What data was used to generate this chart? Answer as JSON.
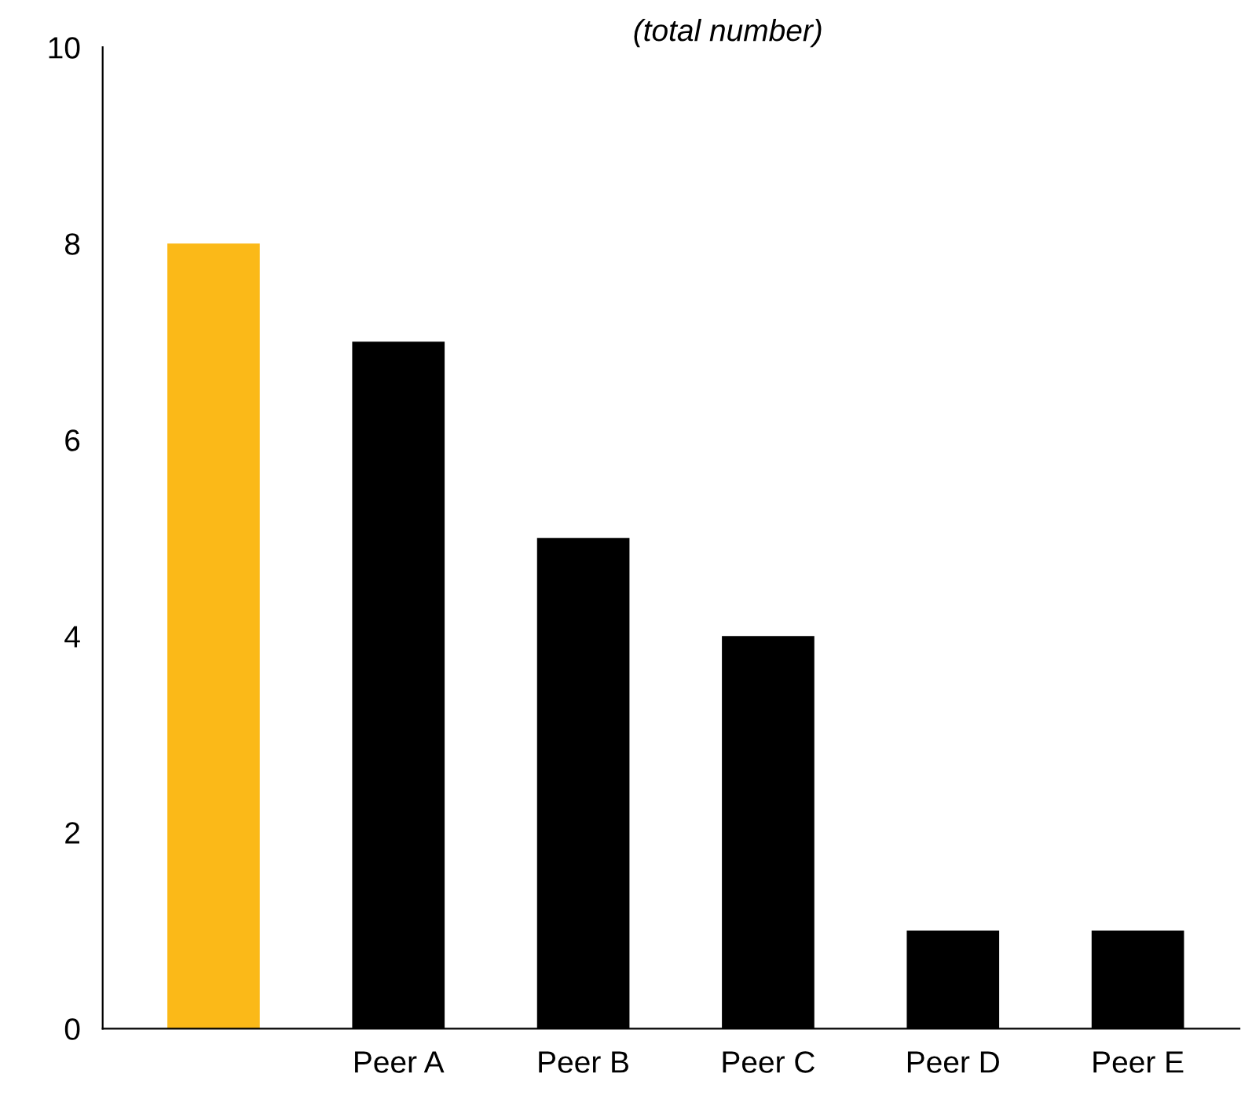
{
  "chart_data": {
    "type": "bar",
    "title": "(total number)",
    "categories": [
      null,
      "Peer A",
      "Peer B",
      "Peer C",
      "Peer D",
      "Peer E"
    ],
    "values": [
      8,
      7,
      5,
      4,
      1,
      1
    ],
    "colors": [
      "#fbb918",
      "#000000",
      "#000000",
      "#000000",
      "#000000",
      "#000000"
    ],
    "ylim": [
      0,
      10
    ],
    "yticks": [
      0,
      2,
      4,
      6,
      8,
      10
    ],
    "grid": false,
    "legend": false
  }
}
